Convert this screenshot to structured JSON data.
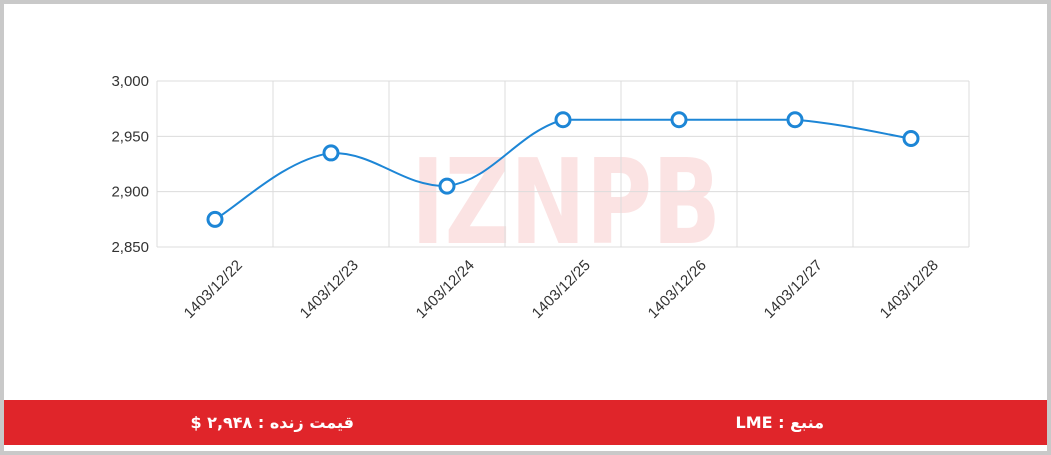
{
  "chart_data": {
    "type": "line",
    "x": [
      "1403/12/22",
      "1403/12/23",
      "1403/12/24",
      "1403/12/25",
      "1403/12/26",
      "1403/12/27",
      "1403/12/28"
    ],
    "series": [
      {
        "values": [
          2875,
          2935,
          2905,
          2965,
          2965,
          2965,
          2948
        ],
        "color": "#1d86d6"
      }
    ],
    "y_ticks": [
      "3,000",
      "2,950",
      "2,900",
      "2,850"
    ],
    "y_tick_values": [
      3000,
      2950,
      2900,
      2850
    ],
    "ylim": [
      2850,
      3000
    ],
    "grid": true,
    "title": "",
    "xlabel": "",
    "ylabel": ""
  },
  "watermark": {
    "text": "IZNPB",
    "color": "#e0252a"
  },
  "footer": {
    "source": "منبع : LME",
    "live_price": "قیمت زنده : ۲,۹۴۸ $",
    "background": "#e0252a"
  }
}
